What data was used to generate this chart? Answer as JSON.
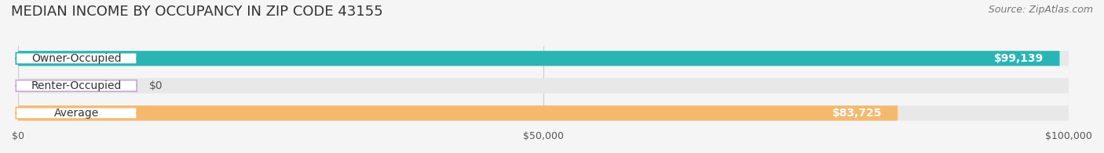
{
  "title": "MEDIAN INCOME BY OCCUPANCY IN ZIP CODE 43155",
  "source": "Source: ZipAtlas.com",
  "categories": [
    "Owner-Occupied",
    "Renter-Occupied",
    "Average"
  ],
  "values": [
    99139,
    0,
    83725
  ],
  "value_labels": [
    "$99,139",
    "$0",
    "$83,725"
  ],
  "bar_colors": [
    "#2ab5b5",
    "#c8a8d0",
    "#f5b96e"
  ],
  "xlim": [
    0,
    100000
  ],
  "xticks": [
    0,
    50000,
    100000
  ],
  "xtick_labels": [
    "$0",
    "$50,000",
    "$100,000"
  ],
  "background_color": "#f5f5f5",
  "bar_background_color": "#e8e8e8",
  "title_fontsize": 13,
  "source_fontsize": 9,
  "label_fontsize": 10,
  "tick_fontsize": 9
}
